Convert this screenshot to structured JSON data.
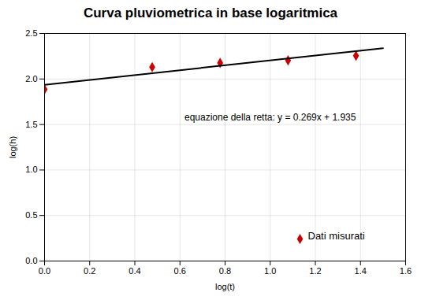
{
  "chart_data": {
    "type": "scatter",
    "title": "Curva pluviometrica in base logaritmica",
    "xlabel": "log(t)",
    "ylabel": "log(h)",
    "xlim": [
      0.0,
      1.6
    ],
    "ylim": [
      0.0,
      2.5
    ],
    "xticks": [
      {
        "value": 0.0,
        "label": "0.0"
      },
      0.2,
      0.4,
      0.6,
      0.8,
      {
        "value": 1.0,
        "label": "1.0"
      },
      1.2,
      1.4,
      1.6
    ],
    "yticks": [
      {
        "value": 0.0,
        "label": "0.0"
      },
      0.5,
      {
        "value": 1.0,
        "label": "1.0"
      },
      1.5,
      {
        "value": 2.0,
        "label": "2.0"
      },
      2.5
    ],
    "grid": true,
    "legend": "lower right",
    "series": [
      {
        "name": "Dati misurati",
        "type": "scatter",
        "color": "#cc0000",
        "marker": "diamond",
        "x": [
          0.0,
          0.477,
          0.778,
          1.079,
          1.38
        ],
        "values": [
          1.886,
          2.13,
          2.176,
          2.204,
          2.255
        ]
      },
      {
        "type": "line",
        "color": "#000000",
        "x": [
          0.0,
          1.5
        ],
        "values": [
          1.935,
          2.3385
        ]
      }
    ],
    "annotations": [
      {
        "text": "equazione della retta: y = 0.269x + 1.935",
        "x": 0.62,
        "y": 1.58
      }
    ]
  }
}
